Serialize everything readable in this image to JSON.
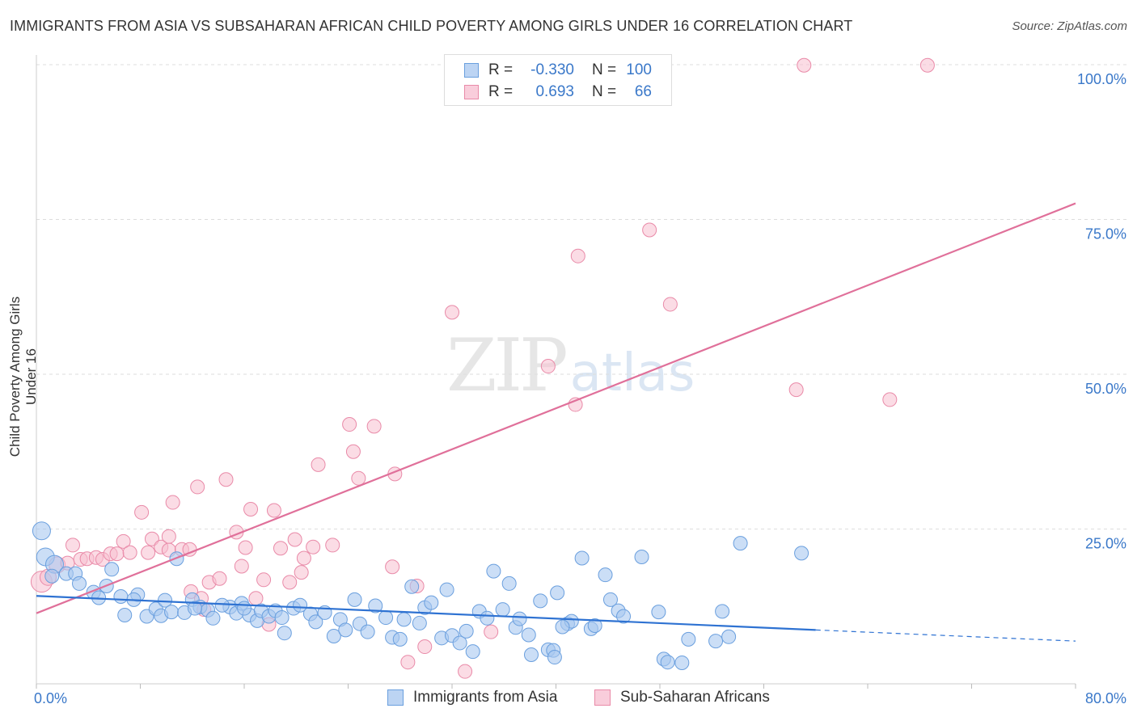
{
  "title": "IMMIGRANTS FROM ASIA VS SUBSAHARAN AFRICAN CHILD POVERTY AMONG GIRLS UNDER 16 CORRELATION CHART",
  "source": "Source: ZipAtlas.com",
  "watermark": {
    "zip": "ZIP",
    "atlas": "atlas"
  },
  "legend": {
    "rows": [
      {
        "r_label": "R =",
        "r_value": "-0.330",
        "n_label": "N =",
        "n_value": "100"
      },
      {
        "r_label": "R =",
        "r_value": "0.693",
        "n_label": "N =",
        "n_value": "66"
      }
    ]
  },
  "bottom_legend": [
    "Immigrants from Asia",
    "Sub-Saharan Africans"
  ],
  "colors": {
    "blue_fill": "#a9c8f0",
    "blue_stroke": "#6a9fde",
    "blue_line": "#2e72d2",
    "pink_fill": "#f7bfd0",
    "pink_stroke": "#e98aa8",
    "pink_line": "#e0709a",
    "tick_text": "#3a78c9",
    "grid": "#dddddd"
  },
  "chart_data": {
    "type": "scatter",
    "title": "IMMIGRANTS FROM ASIA VS SUBSAHARAN AFRICAN CHILD POVERTY AMONG GIRLS UNDER 16 CORRELATION CHART",
    "xlabel": "",
    "ylabel": "Child Poverty Among Girls Under 16",
    "xlim": [
      0,
      80
    ],
    "ylim": [
      0,
      100
    ],
    "x_tick_labels": [
      "0.0%",
      "80.0%"
    ],
    "y_tick_labels": [
      "25.0%",
      "50.0%",
      "75.0%",
      "100.0%"
    ],
    "y_ticks": [
      25,
      50,
      75,
      100
    ],
    "grid": true,
    "legend_position": "top-center",
    "series": [
      {
        "name": "Immigrants from Asia",
        "color": "#a9c8f0",
        "r": -0.33,
        "n": 100,
        "trend": {
          "x": [
            0,
            60
          ],
          "y": [
            14.2,
            8.7
          ],
          "dashed_to": [
            80,
            6.9
          ]
        },
        "points": [
          [
            0.4,
            24.7
          ],
          [
            0.7,
            20.5
          ],
          [
            1.4,
            19.3
          ],
          [
            2.3,
            17.8
          ],
          [
            3.0,
            17.8
          ],
          [
            1.2,
            17.4
          ],
          [
            3.3,
            16.2
          ],
          [
            5.4,
            15.8
          ],
          [
            4.4,
            14.8
          ],
          [
            4.8,
            13.9
          ],
          [
            6.5,
            14.1
          ],
          [
            7.8,
            14.4
          ],
          [
            7.5,
            13.6
          ],
          [
            5.8,
            18.5
          ],
          [
            10.8,
            20.2
          ],
          [
            6.8,
            11.1
          ],
          [
            8.5,
            10.9
          ],
          [
            9.2,
            12.1
          ],
          [
            9.6,
            11.0
          ],
          [
            9.9,
            13.5
          ],
          [
            10.4,
            11.6
          ],
          [
            11.4,
            11.5
          ],
          [
            12.0,
            13.6
          ],
          [
            12.6,
            12.4
          ],
          [
            13.2,
            11.9
          ],
          [
            13.6,
            10.6
          ],
          [
            14.9,
            12.4
          ],
          [
            15.4,
            11.4
          ],
          [
            15.8,
            13.0
          ],
          [
            16.4,
            11.1
          ],
          [
            17.0,
            10.2
          ],
          [
            17.3,
            11.8
          ],
          [
            17.9,
            10.9
          ],
          [
            18.4,
            11.8
          ],
          [
            18.9,
            10.7
          ],
          [
            19.1,
            8.2
          ],
          [
            19.8,
            12.2
          ],
          [
            20.3,
            12.7
          ],
          [
            21.1,
            11.3
          ],
          [
            21.5,
            10.0
          ],
          [
            22.2,
            11.5
          ],
          [
            22.9,
            7.7
          ],
          [
            23.4,
            10.4
          ],
          [
            23.8,
            8.7
          ],
          [
            24.5,
            13.6
          ],
          [
            24.9,
            9.7
          ],
          [
            25.5,
            8.4
          ],
          [
            26.1,
            12.6
          ],
          [
            26.9,
            10.7
          ],
          [
            27.4,
            7.5
          ],
          [
            28.0,
            7.2
          ],
          [
            28.3,
            10.4
          ],
          [
            28.9,
            15.7
          ],
          [
            29.5,
            9.8
          ],
          [
            29.9,
            12.3
          ],
          [
            30.4,
            13.1
          ],
          [
            31.2,
            7.4
          ],
          [
            31.6,
            15.2
          ],
          [
            32.0,
            7.8
          ],
          [
            32.6,
            6.6
          ],
          [
            33.1,
            8.5
          ],
          [
            33.6,
            5.2
          ],
          [
            34.1,
            11.7
          ],
          [
            34.7,
            10.6
          ],
          [
            35.2,
            18.2
          ],
          [
            35.9,
            12.0
          ],
          [
            36.4,
            16.2
          ],
          [
            36.9,
            9.1
          ],
          [
            37.2,
            10.5
          ],
          [
            37.9,
            7.9
          ],
          [
            38.1,
            4.7
          ],
          [
            38.8,
            13.4
          ],
          [
            39.4,
            5.5
          ],
          [
            39.8,
            5.4
          ],
          [
            40.1,
            14.7
          ],
          [
            40.9,
            9.7
          ],
          [
            41.2,
            10.1
          ],
          [
            42.0,
            20.3
          ],
          [
            42.7,
            8.9
          ],
          [
            43.0,
            9.4
          ],
          [
            43.8,
            17.6
          ],
          [
            44.2,
            13.6
          ],
          [
            44.8,
            11.8
          ],
          [
            45.2,
            10.9
          ],
          [
            46.6,
            20.5
          ],
          [
            47.9,
            11.6
          ],
          [
            48.3,
            4.0
          ],
          [
            48.6,
            3.5
          ],
          [
            49.7,
            3.4
          ],
          [
            50.2,
            7.2
          ],
          [
            52.3,
            6.9
          ],
          [
            52.8,
            11.7
          ],
          [
            53.3,
            7.6
          ],
          [
            54.2,
            22.7
          ],
          [
            58.9,
            21.1
          ],
          [
            39.9,
            4.3
          ],
          [
            12.2,
            12.2
          ],
          [
            14.3,
            12.7
          ],
          [
            16.0,
            12.2
          ],
          [
            40.5,
            9.2
          ]
        ]
      },
      {
        "name": "Sub-Saharan Africans",
        "color": "#f7bfd0",
        "r": 0.693,
        "n": 66,
        "trend": {
          "x": [
            0,
            80
          ],
          "y": [
            11.4,
            77.6
          ]
        },
        "points": [
          [
            0.4,
            16.5
          ],
          [
            0.9,
            17.2
          ],
          [
            1.6,
            19.2
          ],
          [
            2.4,
            19.5
          ],
          [
            2.8,
            22.4
          ],
          [
            3.4,
            20.1
          ],
          [
            3.9,
            20.2
          ],
          [
            4.6,
            20.4
          ],
          [
            5.1,
            20.1
          ],
          [
            5.7,
            21.0
          ],
          [
            6.2,
            21.0
          ],
          [
            6.7,
            23.0
          ],
          [
            7.2,
            21.2
          ],
          [
            8.1,
            27.7
          ],
          [
            8.6,
            21.2
          ],
          [
            8.9,
            23.4
          ],
          [
            9.6,
            22.1
          ],
          [
            10.2,
            21.6
          ],
          [
            10.2,
            23.8
          ],
          [
            10.5,
            29.3
          ],
          [
            11.2,
            21.7
          ],
          [
            11.8,
            21.7
          ],
          [
            11.9,
            14.9
          ],
          [
            12.4,
            31.8
          ],
          [
            12.7,
            13.8
          ],
          [
            12.9,
            12.0
          ],
          [
            13.3,
            16.4
          ],
          [
            14.1,
            17.0
          ],
          [
            14.6,
            33.0
          ],
          [
            15.4,
            24.5
          ],
          [
            15.8,
            19.0
          ],
          [
            16.1,
            22.0
          ],
          [
            16.5,
            28.2
          ],
          [
            16.9,
            13.8
          ],
          [
            17.5,
            16.8
          ],
          [
            17.9,
            9.6
          ],
          [
            18.3,
            28.0
          ],
          [
            18.8,
            21.9
          ],
          [
            19.5,
            16.4
          ],
          [
            19.9,
            23.3
          ],
          [
            20.4,
            18.0
          ],
          [
            20.6,
            20.3
          ],
          [
            21.3,
            22.1
          ],
          [
            21.7,
            35.4
          ],
          [
            22.8,
            22.4
          ],
          [
            24.1,
            41.9
          ],
          [
            24.4,
            37.5
          ],
          [
            24.8,
            33.2
          ],
          [
            26.0,
            41.6
          ],
          [
            27.4,
            18.9
          ],
          [
            27.6,
            33.9
          ],
          [
            28.6,
            3.5
          ],
          [
            29.3,
            15.8
          ],
          [
            29.9,
            6.0
          ],
          [
            32.0,
            60.0
          ],
          [
            33.0,
            2.0
          ],
          [
            35.0,
            8.4
          ],
          [
            39.4,
            51.3
          ],
          [
            41.5,
            45.1
          ],
          [
            41.7,
            69.1
          ],
          [
            47.2,
            73.3
          ],
          [
            48.8,
            61.3
          ],
          [
            58.5,
            47.5
          ],
          [
            59.1,
            99.9
          ],
          [
            68.6,
            99.9
          ],
          [
            65.7,
            45.9
          ]
        ]
      }
    ]
  }
}
